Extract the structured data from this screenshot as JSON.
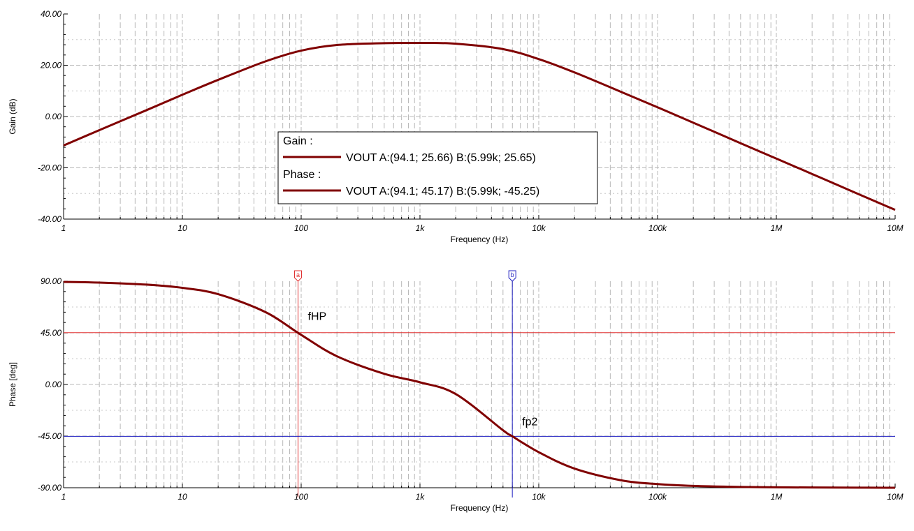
{
  "chart_data": [
    {
      "type": "line",
      "id": "gain",
      "xlabel": "Frequency (Hz)",
      "ylabel": "Gain (dB)",
      "xscale": "log",
      "xlim": [
        1,
        10000000
      ],
      "ylim": [
        -40,
        40
      ],
      "x_tick_labels": [
        "1",
        "10",
        "100",
        "1k",
        "10k",
        "100k",
        "1M",
        "10M"
      ],
      "y_tick_labels": [
        "40.00",
        "20.00",
        "0.00",
        "-20.00",
        "-40.00"
      ],
      "grid": true,
      "series": [
        {
          "name": "VOUT",
          "color": "#800000",
          "x": [
            1,
            2,
            5,
            10,
            20,
            50,
            100,
            200,
            500,
            1000,
            2000,
            5000,
            10000,
            20000,
            50000,
            100000,
            200000,
            500000,
            1000000,
            2000000,
            5000000,
            10000000
          ],
          "y": [
            -11.3,
            -5.3,
            2.5,
            8.5,
            14.3,
            21.5,
            25.7,
            27.9,
            28.6,
            28.7,
            28.4,
            26.3,
            22.4,
            17.2,
            9.5,
            3.6,
            -2.4,
            -10.4,
            -16.4,
            -22.4,
            -30.4,
            -36.4
          ]
        }
      ],
      "legend": {
        "placement": "center-left",
        "groups": [
          {
            "title": "Gain :",
            "entries": [
              {
                "label": "VOUT   A:(94.1; 25.66) B:(5.99k; 25.65)",
                "color": "#800000"
              }
            ]
          },
          {
            "title": "Phase :",
            "entries": [
              {
                "label": "VOUT   A:(94.1; 45.17) B:(5.99k; -45.25)",
                "color": "#800000"
              }
            ]
          }
        ]
      }
    },
    {
      "type": "line",
      "id": "phase",
      "xlabel": "Frequency (Hz)",
      "ylabel": "Phase [deg]",
      "xscale": "log",
      "xlim": [
        1,
        10000000
      ],
      "ylim": [
        -90,
        90
      ],
      "x_tick_labels": [
        "1",
        "10",
        "100",
        "1k",
        "10k",
        "100k",
        "1M",
        "10M"
      ],
      "y_tick_labels": [
        "90.00",
        "45.00",
        "0.00",
        "-45.00",
        "-90.00"
      ],
      "grid": true,
      "series": [
        {
          "name": "VOUT",
          "color": "#800000",
          "x": [
            1,
            2,
            5,
            10,
            20,
            50,
            100,
            200,
            500,
            1000,
            2000,
            5000,
            6000,
            10000,
            20000,
            50000,
            100000,
            200000,
            500000,
            1000000,
            2000000,
            5000000,
            10000000
          ],
          "y": [
            89.4,
            88.8,
            87.0,
            84.2,
            78.7,
            63.1,
            43.2,
            24.6,
            9.3,
            1.9,
            -8.3,
            -39.9,
            -45.2,
            -59.0,
            -73.3,
            -83.6,
            -86.8,
            -88.4,
            -89.3,
            -89.6,
            -89.8,
            -89.9,
            -90.0
          ]
        }
      ],
      "cursors": [
        {
          "label": "a",
          "x": 94.1,
          "y": 45.17,
          "color": "#e03030",
          "annotation": "fHP"
        },
        {
          "label": "b",
          "x": 5990,
          "y": -45.25,
          "color": "#2020c0",
          "annotation": "fp2"
        }
      ]
    }
  ]
}
